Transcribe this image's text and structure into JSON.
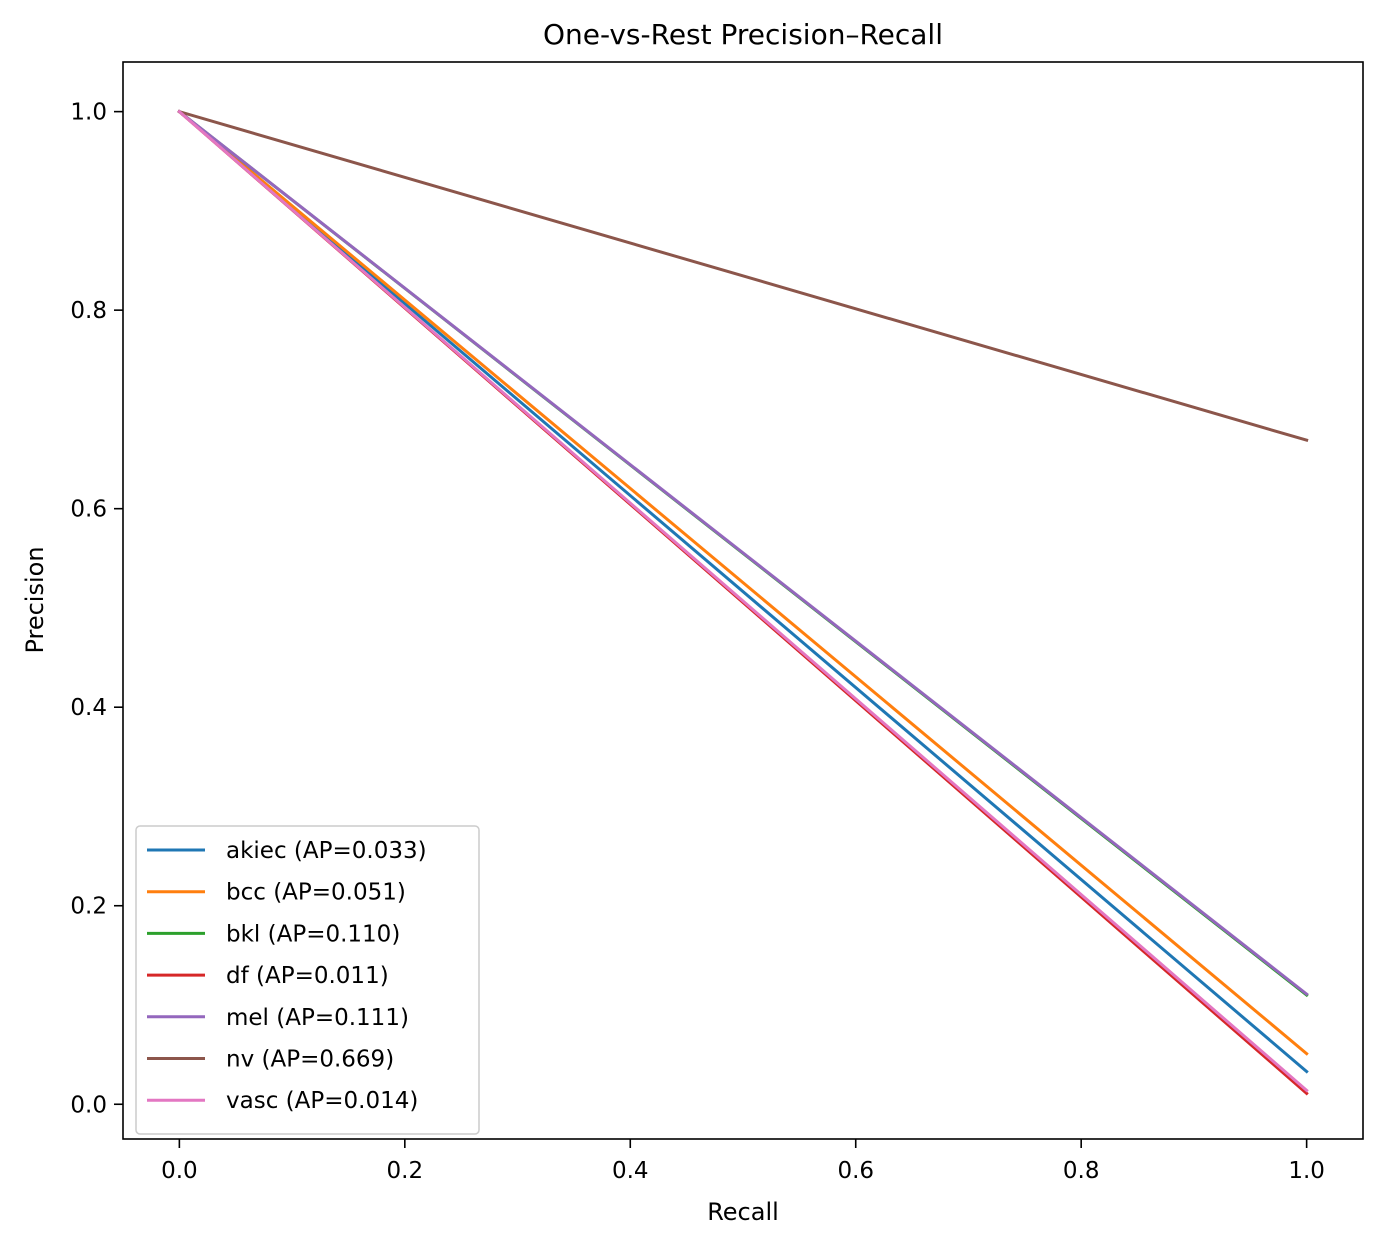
{
  "chart_data": {
    "type": "line",
    "title": "One-vs-Rest Precision–Recall",
    "xlabel": "Recall",
    "ylabel": "Precision",
    "xlim": [
      -0.05,
      1.05
    ],
    "ylim": [
      -0.035,
      1.05
    ],
    "xticks": [
      0.0,
      0.2,
      0.4,
      0.6,
      0.8,
      1.0
    ],
    "xtick_labels": [
      "0.0",
      "0.2",
      "0.4",
      "0.6",
      "0.8",
      "1.0"
    ],
    "yticks": [
      0.0,
      0.2,
      0.4,
      0.6,
      0.8,
      1.0
    ],
    "ytick_labels": [
      "0.0",
      "0.2",
      "0.4",
      "0.6",
      "0.8",
      "1.0"
    ],
    "grid": false,
    "legend_position": "lower-left",
    "series": [
      {
        "name": "akiec (AP=0.033)",
        "color": "#1f77b4",
        "x": [
          0.0,
          1.0
        ],
        "y": [
          1.0,
          0.033
        ]
      },
      {
        "name": "bcc (AP=0.051)",
        "color": "#ff7f0e",
        "x": [
          0.0,
          1.0
        ],
        "y": [
          1.0,
          0.051
        ]
      },
      {
        "name": "bkl (AP=0.110)",
        "color": "#2ca02c",
        "x": [
          0.0,
          1.0
        ],
        "y": [
          1.0,
          0.11
        ]
      },
      {
        "name": "df (AP=0.011)",
        "color": "#d62728",
        "x": [
          0.0,
          1.0
        ],
        "y": [
          1.0,
          0.011
        ]
      },
      {
        "name": "mel (AP=0.111)",
        "color": "#9467bd",
        "x": [
          0.0,
          1.0
        ],
        "y": [
          1.0,
          0.111
        ]
      },
      {
        "name": "nv (AP=0.669)",
        "color": "#8c564b",
        "x": [
          0.0,
          1.0
        ],
        "y": [
          1.0,
          0.669
        ]
      },
      {
        "name": "vasc (AP=0.014)",
        "color": "#e377c2",
        "x": [
          0.0,
          1.0
        ],
        "y": [
          1.0,
          0.014
        ]
      }
    ]
  }
}
